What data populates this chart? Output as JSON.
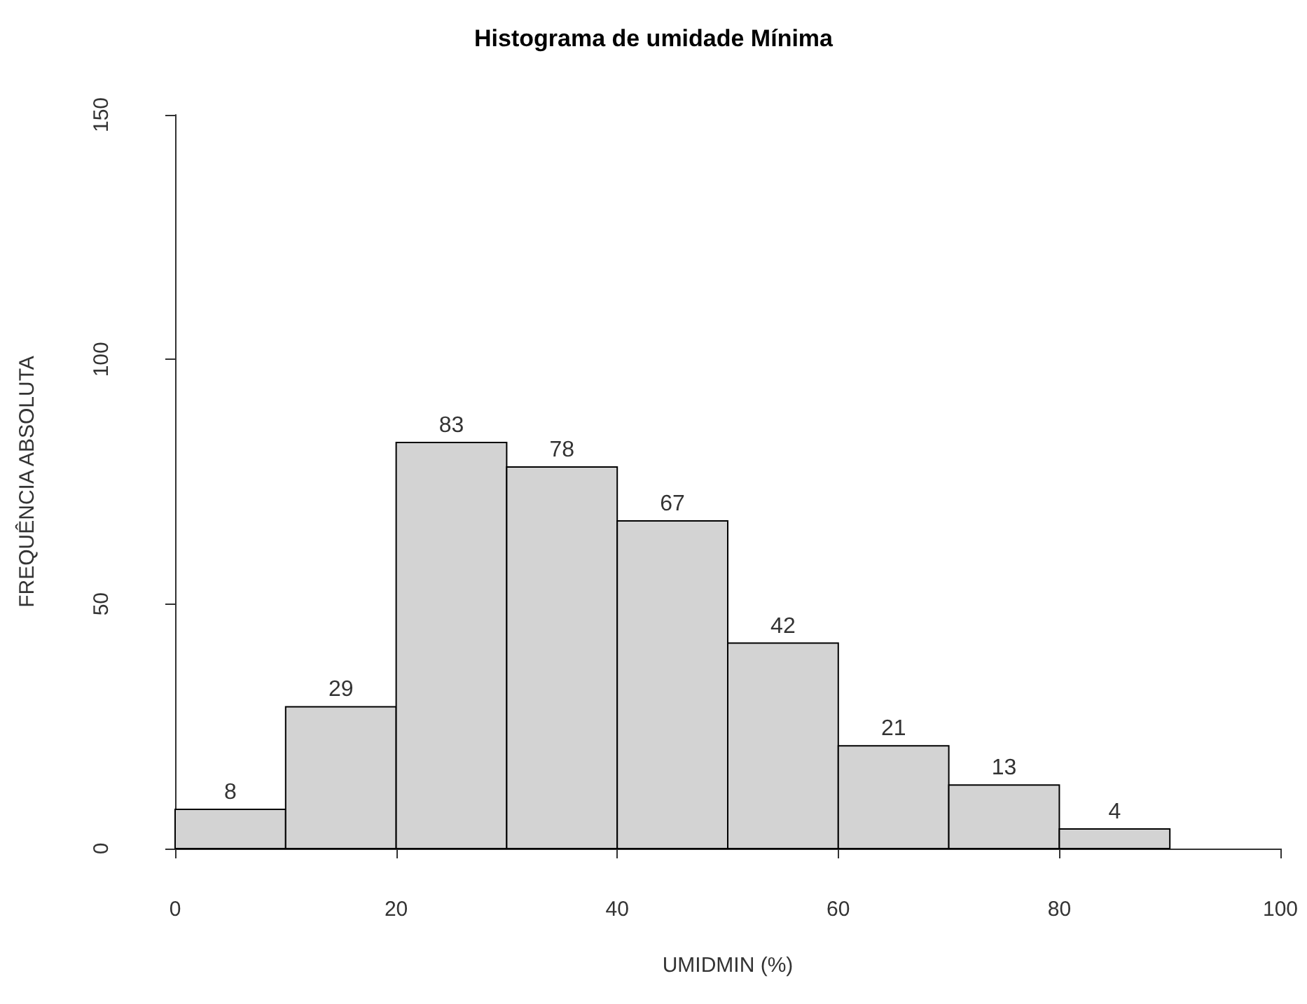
{
  "chart_data": {
    "type": "histogram",
    "title": "Histograma de umidade Mínima",
    "xlabel": "UMIDMIN (%)",
    "ylabel": "FREQUÊNCIA ABSOLUTA",
    "bins": [
      0,
      10,
      20,
      30,
      40,
      50,
      60,
      70,
      80,
      90
    ],
    "values": [
      8,
      29,
      83,
      78,
      67,
      42,
      21,
      13,
      4
    ],
    "color": "#d3d3d3",
    "xlim": [
      0,
      100
    ],
    "xticks": [
      0,
      20,
      40,
      60,
      80,
      100
    ],
    "ylim": [
      0,
      150
    ],
    "yticks": [
      0,
      50,
      100,
      150
    ],
    "data_labels": true,
    "grid": false,
    "legend": false
  }
}
